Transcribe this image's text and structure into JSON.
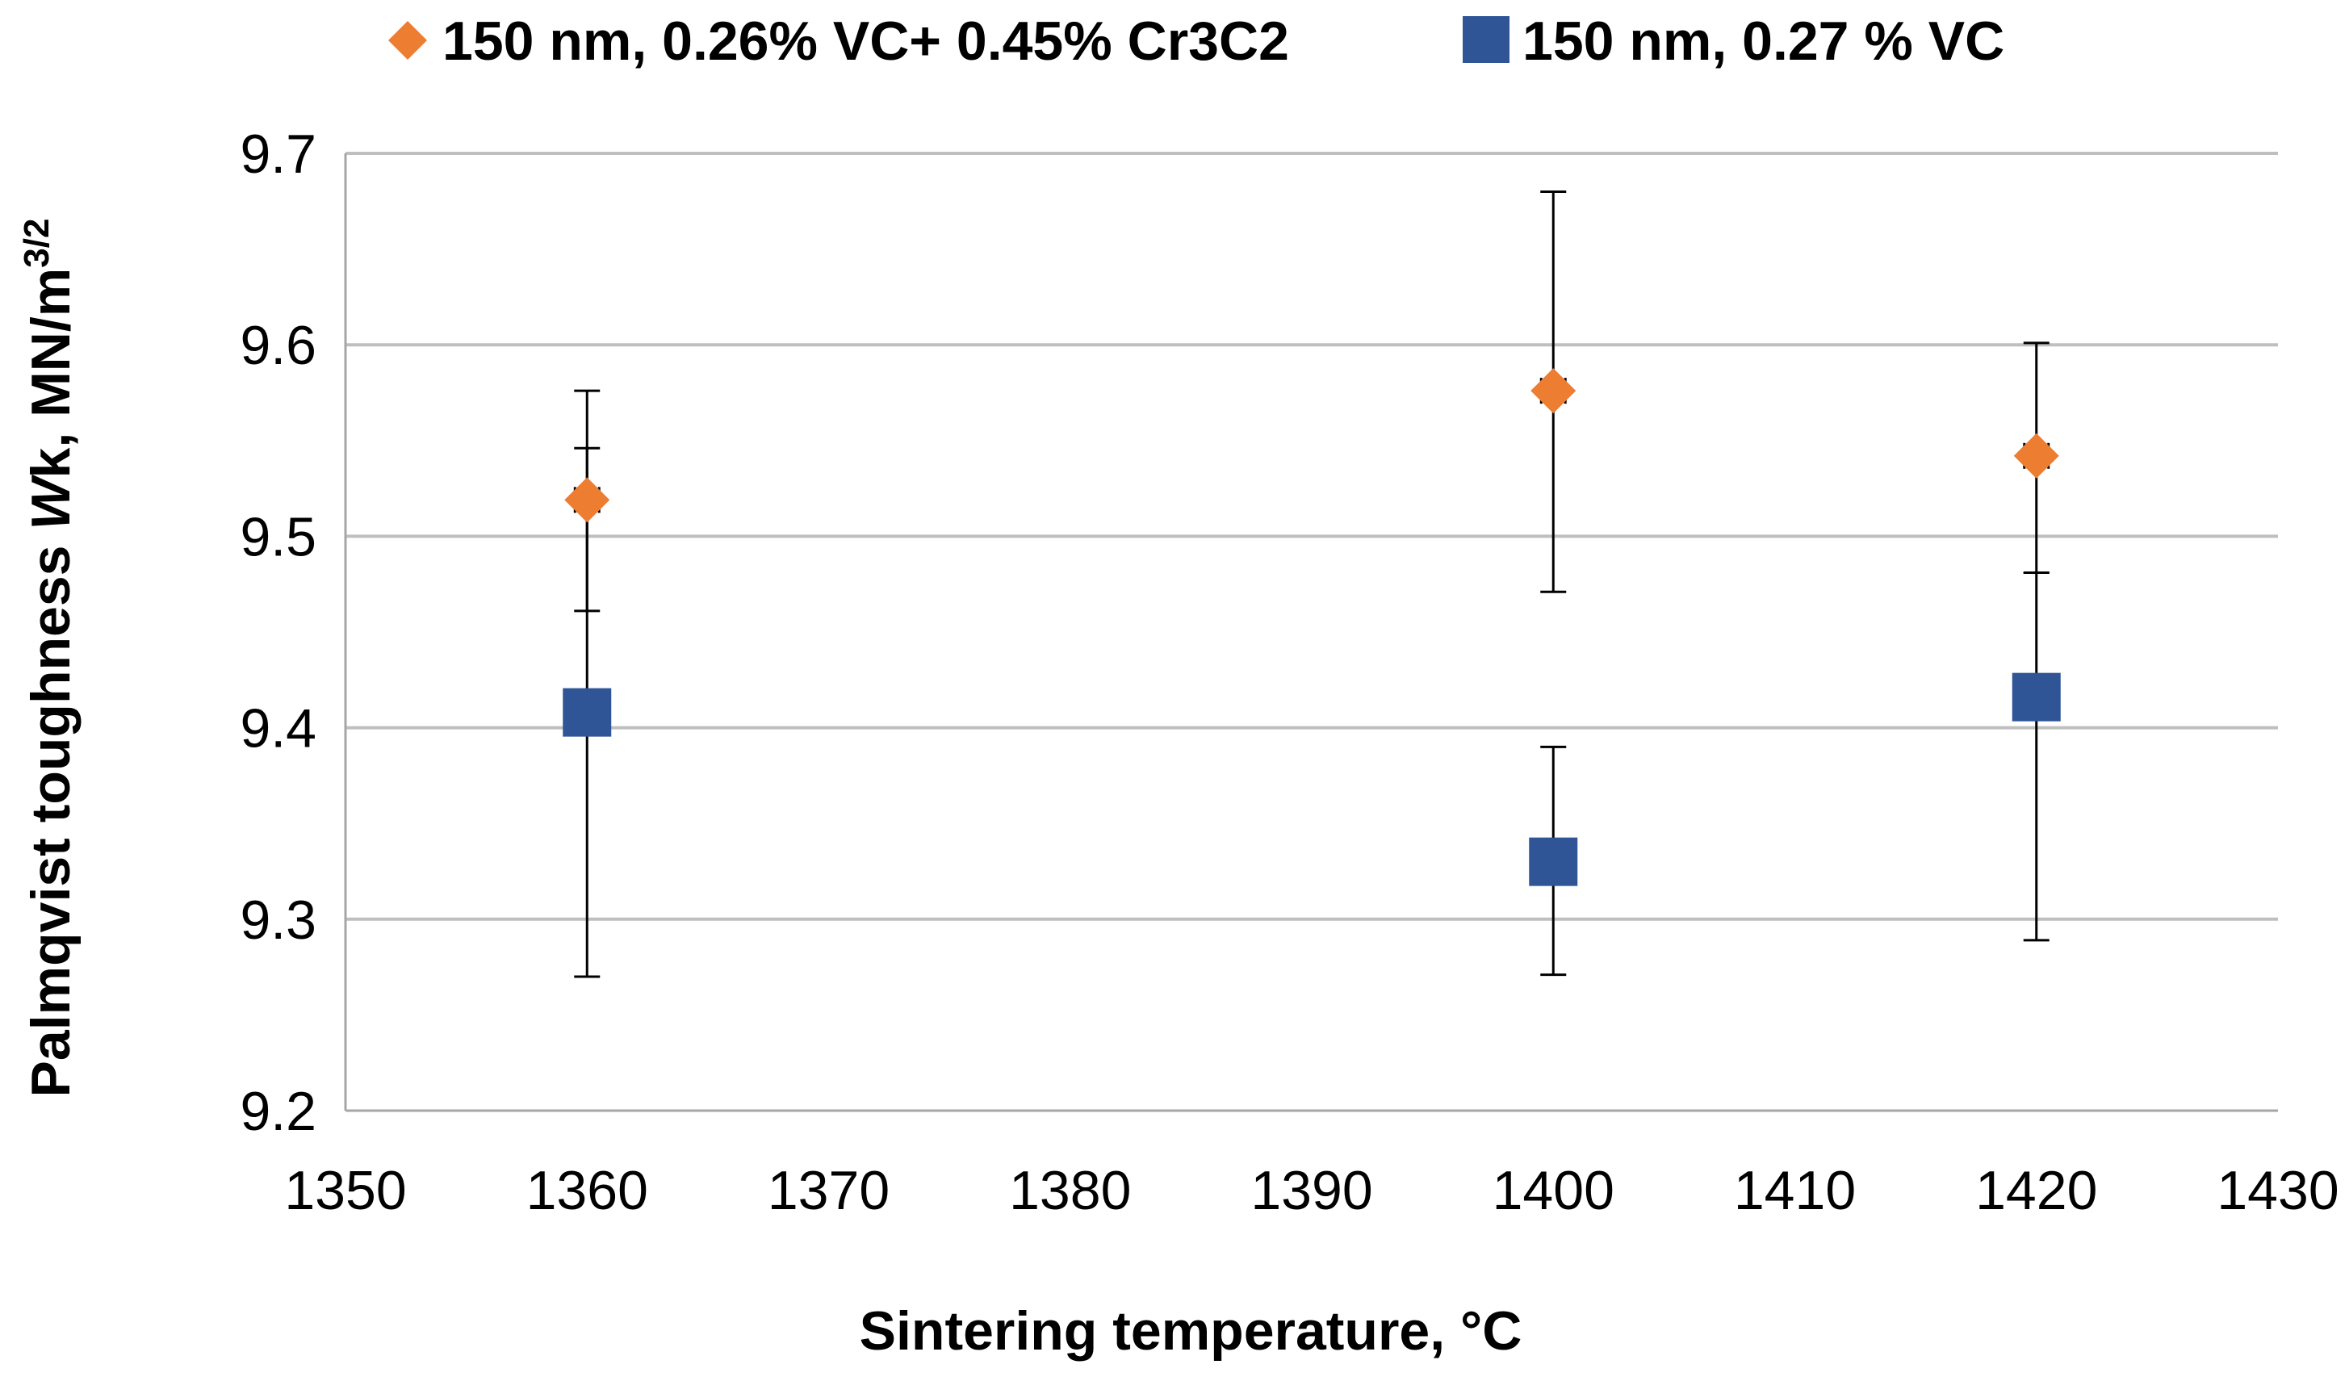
{
  "chart_data": {
    "type": "scatter",
    "title": "",
    "xlabel": "Sintering temperature, °C",
    "ylabel_parts": [
      "Palmqvist toughness ",
      "W",
      "k, MN/m",
      "3/2"
    ],
    "xlim": [
      1350,
      1430
    ],
    "ylim": [
      9.2,
      9.7
    ],
    "x_ticks": [
      1350,
      1360,
      1370,
      1380,
      1390,
      1400,
      1410,
      1420,
      1430
    ],
    "y_ticks": [
      9.2,
      9.3,
      9.4,
      9.5,
      9.6,
      9.7
    ],
    "x_tick_labels": [
      "1350",
      "1360",
      "1370",
      "1380",
      "1390",
      "1400",
      "1410",
      "1420",
      "1430"
    ],
    "y_tick_labels": [
      "9.2",
      "9.3",
      "9.4",
      "9.5",
      "9.6",
      "9.7"
    ],
    "grid": "horizontal",
    "legend_position": "top",
    "series": [
      {
        "name": "150 nm, 0.26% VC+ 0.45% Cr3C2",
        "marker": "diamond",
        "color": "#ED7D31",
        "points": [
          {
            "x": 1360,
            "y": 9.519,
            "y_err_low": 9.461,
            "y_err_high": 9.576,
            "x_err": 0.5
          },
          {
            "x": 1400,
            "y": 9.576,
            "y_err_low": 9.471,
            "y_err_high": 9.68,
            "x_err": 0.5
          },
          {
            "x": 1420,
            "y": 9.542,
            "y_err_low": 9.481,
            "y_err_high": 9.601,
            "x_err": 0.5
          }
        ]
      },
      {
        "name": "150 nm, 0.27 % VC",
        "marker": "square",
        "color": "#2F5597",
        "points": [
          {
            "x": 1360,
            "y": 9.408,
            "y_err_low": 9.27,
            "y_err_high": 9.546,
            "x_err": 0.5
          },
          {
            "x": 1400,
            "y": 9.33,
            "y_err_low": 9.271,
            "y_err_high": 9.39,
            "x_err": 0.5
          },
          {
            "x": 1420,
            "y": 9.416,
            "y_err_low": 9.289,
            "y_err_high": 9.481,
            "x_err": 0.5
          }
        ]
      }
    ]
  }
}
